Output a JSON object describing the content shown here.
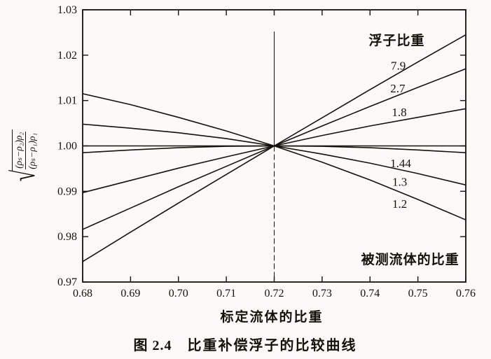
{
  "figure": {
    "ylabel": {
      "radical": "√",
      "numerator": "(ρₛ−ρ₂)ρ₂",
      "denominator": "(ρₛ−ρ₁)ρ₁"
    },
    "xlabel": "标定流体的比重",
    "caption_prefix": "图 2.4",
    "caption_title": "比重补偿浮子的比较曲线"
  },
  "chart_data": {
    "type": "line",
    "title": "图 2.4 比重补偿浮子的比较曲线",
    "xlabel": "标定流体的比重",
    "ylabel": "√[(ρₛ−ρ₂)ρ₂ / ((ρₛ−ρ₁)ρ₁)]",
    "legend_title": "浮子比重",
    "xlim": [
      0.68,
      0.76
    ],
    "ylim": [
      0.97,
      1.03
    ],
    "x_ticks": [
      "0.68",
      "0.69",
      "0.70",
      "0.71",
      "0.72",
      "0.73",
      "0.74",
      "0.75",
      "0.76"
    ],
    "y_ticks": [
      "0.97",
      "0.98",
      "0.99",
      "1.00",
      "1.01",
      "1.02",
      "1.03"
    ],
    "grid": false,
    "x": [
      0.68,
      0.69,
      0.7,
      0.71,
      0.72,
      0.73,
      0.74,
      0.75,
      0.76
    ],
    "series": [
      {
        "name": "7.9",
        "values": [
          0.9745,
          0.981,
          0.9874,
          0.9937,
          1.0,
          1.0062,
          1.0124,
          1.0185,
          1.0245
        ],
        "label_pos": {
          "x": 0.7459,
          "y": 1.0177
        }
      },
      {
        "name": "2.7",
        "values": [
          0.9816,
          0.9863,
          0.991,
          0.9955,
          1.0,
          1.0044,
          1.0087,
          1.0129,
          1.017
        ],
        "label_pos": {
          "x": 0.7458,
          "y": 1.0127
        }
      },
      {
        "name": "1.8",
        "values": [
          0.9897,
          0.9924,
          0.9951,
          0.9976,
          1.0,
          1.0023,
          1.0044,
          1.0063,
          1.0082
        ],
        "label_pos": {
          "x": 0.7461,
          "y": 1.0075
        }
      },
      {
        "name": "1.44",
        "values": [
          0.9985,
          0.9991,
          0.9996,
          0.9999,
          1.0,
          0.9999,
          0.9996,
          0.9991,
          0.9985
        ],
        "label_pos": {
          "x": 0.7464,
          "y": 0.9962
        }
      },
      {
        "name": "1.3",
        "values": [
          1.0048,
          1.0039,
          1.0029,
          1.0016,
          1.0,
          0.9982,
          0.9962,
          0.9939,
          0.9914
        ],
        "label_pos": {
          "x": 0.7462,
          "y": 0.9921
        }
      },
      {
        "name": "1.2",
        "values": [
          1.0115,
          1.0091,
          1.0063,
          1.0033,
          1.0,
          0.9964,
          0.9925,
          0.9882,
          0.9837
        ],
        "label_pos": {
          "x": 0.7462,
          "y": 0.9873
        }
      }
    ],
    "reference_line_y": 1.0,
    "vertical_line": {
      "x": 0.72,
      "y_top": 1.0252,
      "y_bottom": 0.97
    },
    "annotations": [
      {
        "name": "float-gravity-annotation",
        "text": "浮子比重",
        "x": 0.7456,
        "y": 1.0234
      },
      {
        "name": "measured-fluid-annotation",
        "text": "被测流体的比重",
        "x": 0.7484,
        "y": 0.9751
      }
    ],
    "ink_color": "#15120e",
    "paper_color": "#fbfaf6"
  }
}
